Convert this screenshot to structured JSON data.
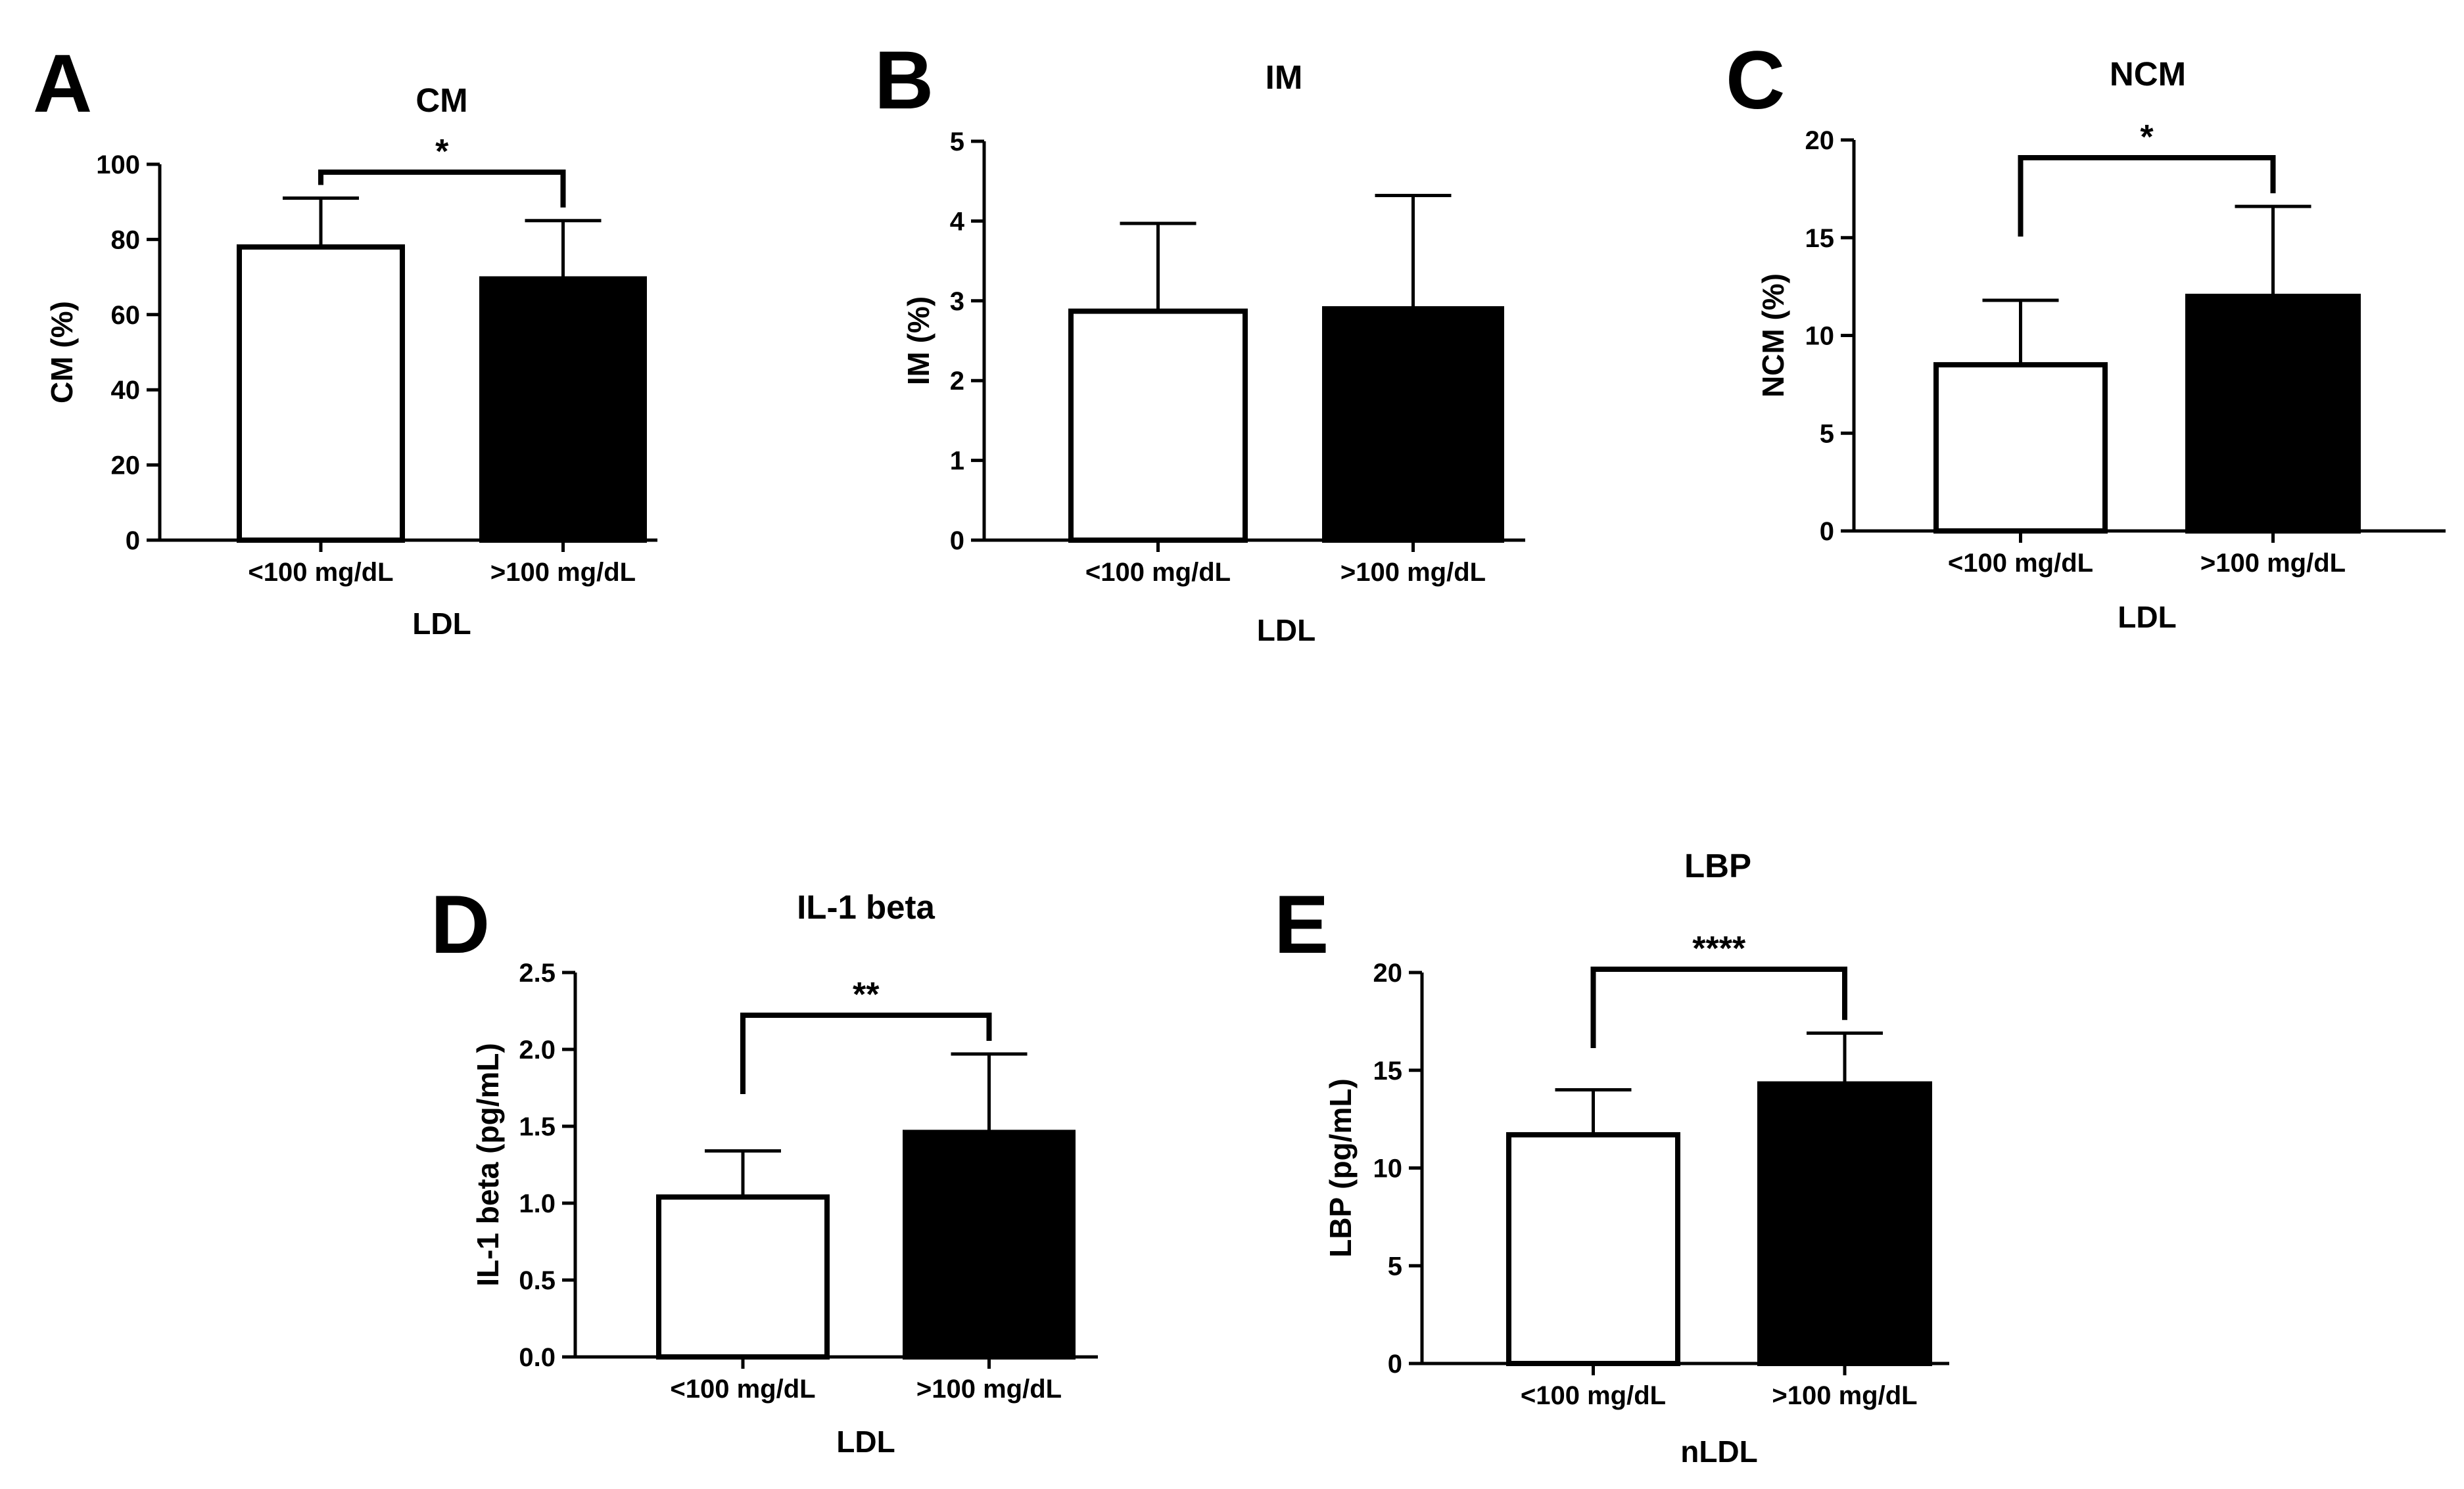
{
  "figure": {
    "background": "#ffffff",
    "bar_colors": [
      "#ffffff",
      "#000000"
    ],
    "line_color": "#000000"
  },
  "chart_data": [
    {
      "panel": "A",
      "type": "bar",
      "title": "CM",
      "xlabel": "LDL",
      "ylabel": "CM (%)",
      "categories": [
        "<100 mg/dL",
        ">100 mg/dL"
      ],
      "values": [
        78,
        69.5
      ],
      "errors": [
        13,
        15.5
      ],
      "ylim": [
        0,
        100
      ],
      "yticks": [
        0,
        20,
        40,
        60,
        80,
        100
      ],
      "ytick_labels": [
        "0",
        "20",
        "40",
        "60",
        "80",
        "100"
      ],
      "significance": "*"
    },
    {
      "panel": "B",
      "type": "bar",
      "title": "IM",
      "xlabel": "LDL",
      "ylabel": "IM (%)",
      "categories": [
        "<100 mg/dL",
        ">100 mg/dL"
      ],
      "values": [
        2.87,
        2.9
      ],
      "errors": [
        1.1,
        1.42
      ],
      "ylim": [
        0,
        5
      ],
      "yticks": [
        0,
        1,
        2,
        3,
        4,
        5
      ],
      "ytick_labels": [
        "0",
        "1",
        "2",
        "3",
        "4",
        "5"
      ],
      "significance": ""
    },
    {
      "panel": "C",
      "type": "bar",
      "title": "NCM",
      "xlabel": "LDL",
      "ylabel": "NCM (%)",
      "categories": [
        "<100 mg/dL",
        ">100 mg/dL"
      ],
      "values": [
        8.5,
        12
      ],
      "errors": [
        3.3,
        4.6
      ],
      "ylim": [
        0,
        20
      ],
      "yticks": [
        0,
        5,
        10,
        15,
        20
      ],
      "ytick_labels": [
        "0",
        "5",
        "10",
        "15",
        "20"
      ],
      "significance": "*"
    },
    {
      "panel": "D",
      "type": "bar",
      "title": "IL-1 beta",
      "xlabel": "LDL",
      "ylabel": "IL-1 beta (pg/mL)",
      "categories": [
        "<100 mg/dL",
        ">100 mg/dL"
      ],
      "values": [
        1.04,
        1.46
      ],
      "errors": [
        0.3,
        0.51
      ],
      "ylim": [
        0,
        2.5
      ],
      "yticks": [
        0,
        0.5,
        1,
        1.5,
        2,
        2.5
      ],
      "ytick_labels": [
        "0.0",
        "0.5",
        "1.0",
        "1.5",
        "2.0",
        "2.5"
      ],
      "significance": "**"
    },
    {
      "panel": "E",
      "type": "bar",
      "title": "LBP",
      "xlabel": "nLDL",
      "ylabel": "LBP (pg/mL)",
      "categories": [
        "<100 mg/dL",
        ">100 mg/dL"
      ],
      "values": [
        11.7,
        14.3
      ],
      "errors": [
        2.3,
        2.6
      ],
      "ylim": [
        0,
        20
      ],
      "yticks": [
        0,
        5,
        10,
        15,
        20
      ],
      "ytick_labels": [
        "0",
        "5",
        "10",
        "15",
        "20"
      ],
      "significance": "****"
    }
  ]
}
